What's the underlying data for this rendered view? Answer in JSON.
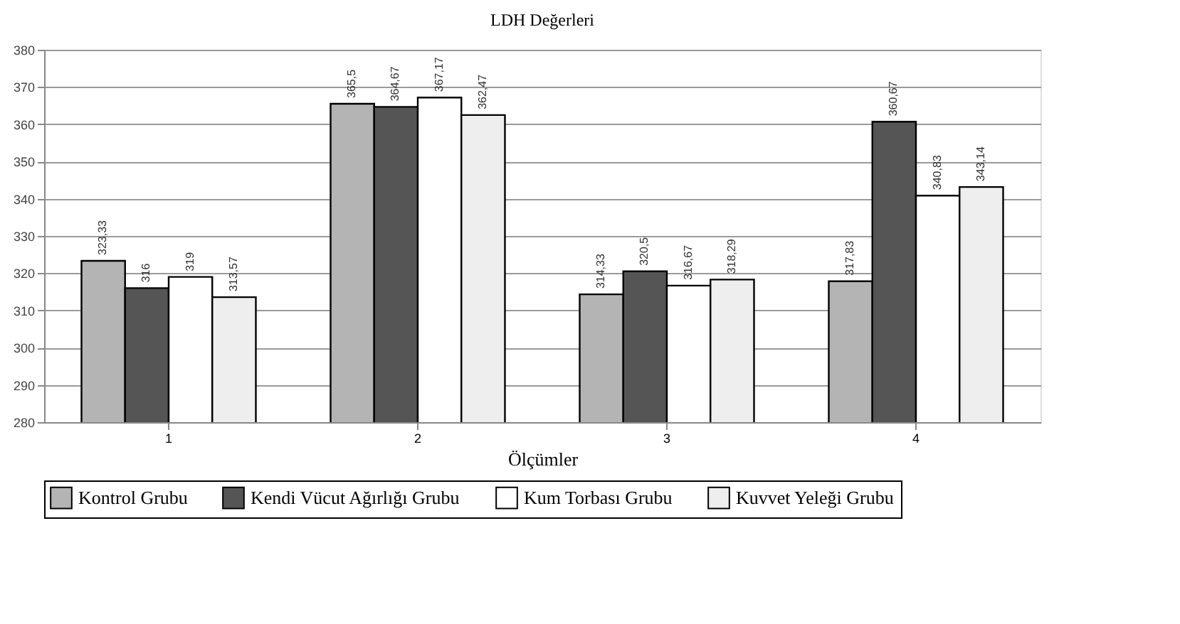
{
  "chart_data": {
    "type": "bar",
    "title": "LDH Değerleri",
    "xlabel": "Ölçümler",
    "categories": [
      "1",
      "2",
      "3",
      "4"
    ],
    "series": [
      {
        "name": "Kontrol Grubu",
        "color": "#b4b4b4",
        "values": [
          323.33,
          365.5,
          314.33,
          317.83
        ],
        "value_labels": [
          "323,33",
          "365,5",
          "314,33",
          "317,83"
        ]
      },
      {
        "name": "Kendi Vücut Ağırlığı Grubu",
        "color": "#555555",
        "values": [
          316,
          364.67,
          320.5,
          360.67
        ],
        "value_labels": [
          "316",
          "364,67",
          "320,5",
          "360,67"
        ]
      },
      {
        "name": "Kum Torbası Grubu",
        "color": "#ffffff",
        "values": [
          319,
          367.17,
          316.67,
          340.83
        ],
        "value_labels": [
          "319",
          "367,17",
          "316,67",
          "340,83"
        ]
      },
      {
        "name": "Kuvvet Yeleği Grubu",
        "color": "#eeeeee",
        "values": [
          313.57,
          362.47,
          318.29,
          343.14
        ],
        "value_labels": [
          "313,57",
          "362,47",
          "318,29",
          "343,14"
        ]
      }
    ],
    "ylim": [
      280,
      380
    ],
    "yticks": [
      280,
      290,
      300,
      310,
      320,
      330,
      340,
      350,
      360,
      370,
      380
    ],
    "grid": "y",
    "legend": "bottom"
  }
}
